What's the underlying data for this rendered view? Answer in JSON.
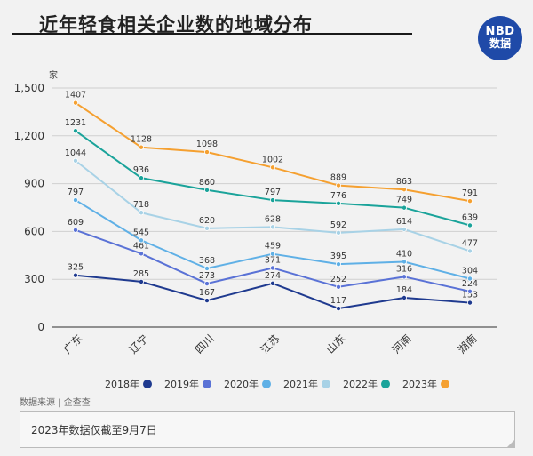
{
  "header": {
    "title": "近年轻食相关企业数的地域分布"
  },
  "logo": {
    "line1": "NBD",
    "line2": "数据"
  },
  "unit_label": "家",
  "source": "数据来源 | 企查查",
  "note": "2023年数据仅截至9月7日",
  "colors": {
    "background": "#f2f2f2",
    "logo": "#1f4aa8"
  },
  "chart_data": {
    "type": "line",
    "title": "近年轻食相关企业数的地域分布",
    "ylabel": "家",
    "xlabel": "",
    "categories": [
      "广东",
      "辽宁",
      "四川",
      "江苏",
      "山东",
      "河南",
      "湖南"
    ],
    "ylim": [
      0,
      1500
    ],
    "yticks": [
      0,
      300,
      600,
      900,
      1200,
      1500
    ],
    "ytick_labels": [
      "0",
      "300",
      "600",
      "900",
      "1,200",
      "1,500"
    ],
    "grid": true,
    "legend_position": "bottom",
    "series": [
      {
        "name": "2018年",
        "color": "#1f3a8f",
        "values": [
          325,
          285,
          167,
          274,
          117,
          184,
          153
        ]
      },
      {
        "name": "2019年",
        "color": "#5a72d6",
        "values": [
          609,
          461,
          273,
          371,
          252,
          316,
          224
        ]
      },
      {
        "name": "2020年",
        "color": "#5fb0e6",
        "values": [
          797,
          545,
          368,
          459,
          395,
          410,
          304
        ]
      },
      {
        "name": "2021年",
        "color": "#a8d2e6",
        "values": [
          1044,
          718,
          620,
          628,
          592,
          614,
          477
        ]
      },
      {
        "name": "2022年",
        "color": "#1aa39a",
        "values": [
          1231,
          936,
          860,
          797,
          776,
          749,
          639
        ]
      },
      {
        "name": "2023年",
        "color": "#f5a030",
        "values": [
          1407,
          1128,
          1098,
          1002,
          889,
          863,
          791
        ]
      }
    ]
  }
}
